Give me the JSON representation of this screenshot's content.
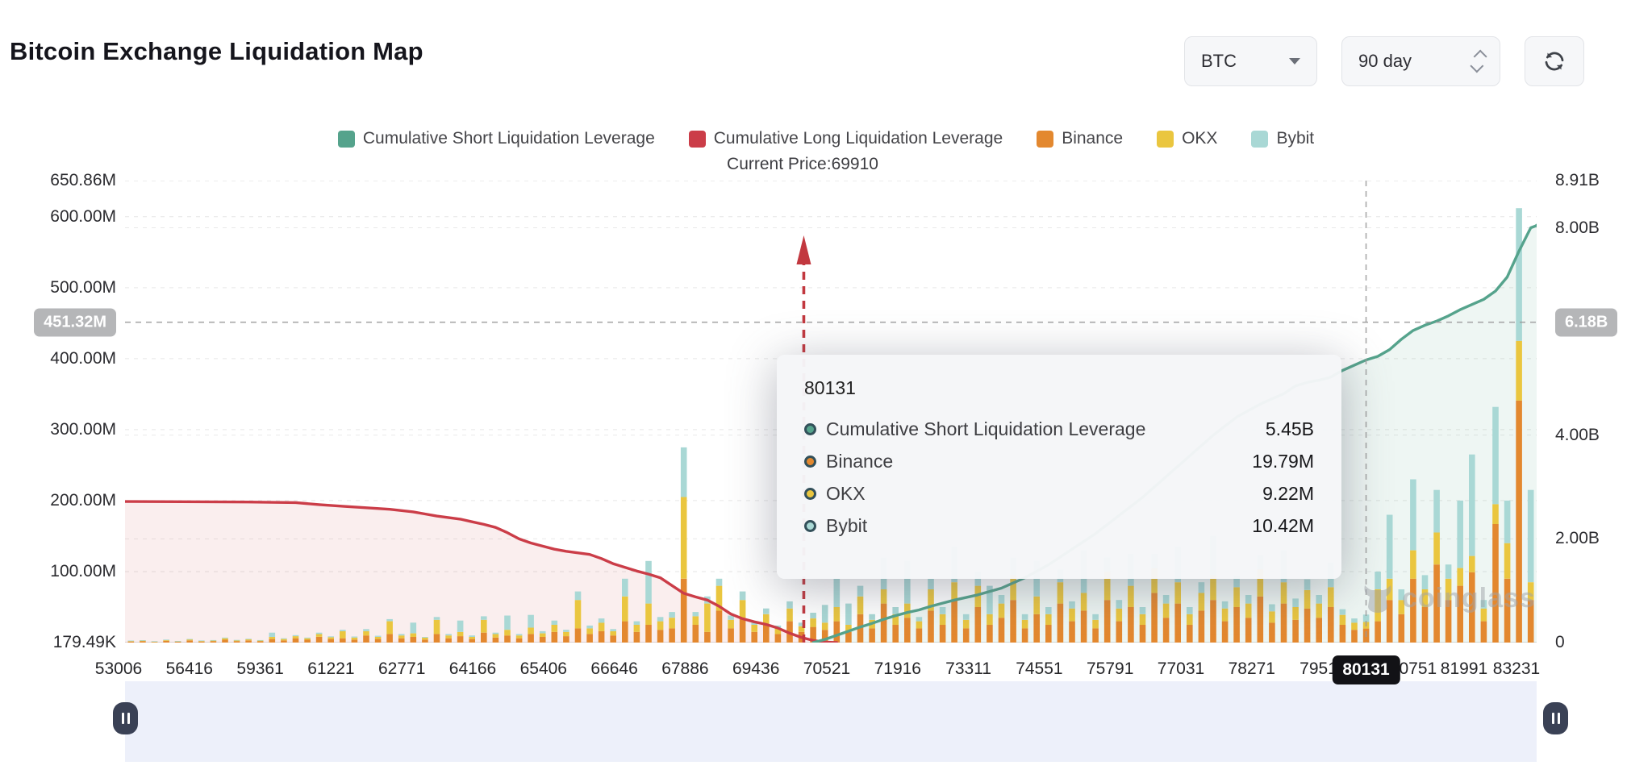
{
  "header": {
    "title": "Bitcoin Exchange Liquidation Map"
  },
  "controls": {
    "symbol": "BTC",
    "timeframe": "90 day"
  },
  "legend": {
    "items": [
      {
        "label": "Cumulative Short Liquidation Leverage",
        "color": "#55a38c"
      },
      {
        "label": "Cumulative Long Liquidation Leverage",
        "color": "#cb3d48"
      },
      {
        "label": "Binance",
        "color": "#e3882f"
      },
      {
        "label": "OKX",
        "color": "#eac63f"
      },
      {
        "label": "Bybit",
        "color": "#a9d8d5"
      }
    ]
  },
  "annotations": {
    "current_price_label": "Current Price:69910",
    "current_price_value": 69910
  },
  "tooltip": {
    "title": "80131",
    "rows": [
      {
        "label": "Cumulative Short Liquidation Leverage",
        "value": "5.45B",
        "color": "#55a38c"
      },
      {
        "label": "Binance",
        "value": "19.79M",
        "color": "#e3882f"
      },
      {
        "label": "OKX",
        "value": "9.22M",
        "color": "#eac63f"
      },
      {
        "label": "Bybit",
        "value": "10.42M",
        "color": "#a9d8d5"
      }
    ]
  },
  "watermark": {
    "text": "coinglass"
  },
  "chart_data": {
    "type": "bar",
    "combo": "stacked bars (left axis, millions USD) + two cumulative lines (right axis, billions USD)",
    "title": "Bitcoin Exchange Liquidation Map",
    "x_axis_labels": [
      "53006",
      "56416",
      "59361",
      "61221",
      "62771",
      "64166",
      "65406",
      "66646",
      "67886",
      "69436",
      "70521",
      "71916",
      "73311",
      "74551",
      "75791",
      "77031",
      "78271",
      "79511",
      "80131",
      "80751",
      "81991",
      "83231"
    ],
    "left_axis": {
      "unit": "M",
      "max": 650.86,
      "ticks": [
        {
          "label": "650.86M",
          "value": 650.86
        },
        {
          "label": "600.00M",
          "value": 600
        },
        {
          "label": "500.00M",
          "value": 500
        },
        {
          "label": "400.00M",
          "value": 400
        },
        {
          "label": "300.00M",
          "value": 300
        },
        {
          "label": "200.00M",
          "value": 200
        },
        {
          "label": "100.00M",
          "value": 100
        },
        {
          "label": "179.49K",
          "value": 0
        }
      ]
    },
    "right_axis": {
      "unit": "B",
      "max": 8.91,
      "ticks": [
        {
          "label": "8.91B",
          "value": 8.91
        },
        {
          "label": "8.00B",
          "value": 8
        },
        {
          "label": "4.00B",
          "value": 4
        },
        {
          "label": "2.00B",
          "value": 2
        },
        {
          "label": "0",
          "value": 0
        }
      ]
    },
    "crosshair": {
      "x_label": "80131",
      "hover_index": 105,
      "left_label": "451.32M",
      "left_value": 451.32,
      "right_label": "6.18B",
      "right_value": 6.18
    },
    "current_price": {
      "value": 69910,
      "bar_index": 57.2
    },
    "series": [
      {
        "name": "Cumulative Long Liquidation Leverage",
        "type": "line",
        "axis": "right",
        "color": "#cb3d48",
        "fill": "rgba(203,61,72,0.09)",
        "points": [
          [
            0,
            2.72
          ],
          [
            10,
            2.71
          ],
          [
            14,
            2.7
          ],
          [
            16,
            2.66
          ],
          [
            18,
            2.63
          ],
          [
            20,
            2.6
          ],
          [
            22,
            2.57
          ],
          [
            24,
            2.52
          ],
          [
            25,
            2.48
          ],
          [
            26,
            2.44
          ],
          [
            28,
            2.38
          ],
          [
            29,
            2.33
          ],
          [
            30,
            2.28
          ],
          [
            31,
            2.22
          ],
          [
            32,
            2.12
          ],
          [
            33,
            2.0
          ],
          [
            34,
            1.92
          ],
          [
            35,
            1.86
          ],
          [
            36,
            1.8
          ],
          [
            37,
            1.76
          ],
          [
            39,
            1.7
          ],
          [
            40,
            1.62
          ],
          [
            41,
            1.52
          ],
          [
            42,
            1.45
          ],
          [
            43,
            1.38
          ],
          [
            44,
            1.32
          ],
          [
            45,
            1.25
          ],
          [
            46,
            1.1
          ],
          [
            47,
            0.95
          ],
          [
            48,
            0.88
          ],
          [
            49,
            0.82
          ],
          [
            50,
            0.7
          ],
          [
            51,
            0.55
          ],
          [
            52,
            0.46
          ],
          [
            53,
            0.4
          ],
          [
            54,
            0.35
          ],
          [
            55,
            0.28
          ],
          [
            56,
            0.18
          ],
          [
            57,
            0.1
          ],
          [
            58,
            0.04
          ],
          [
            59,
            0.01
          ],
          [
            60,
            0
          ]
        ]
      },
      {
        "name": "Cumulative Short Liquidation Leverage",
        "type": "line",
        "axis": "right",
        "color": "#55a38c",
        "fill": "rgba(85,163,140,0.10)",
        "points": [
          [
            58,
            0
          ],
          [
            59,
            0.06
          ],
          [
            60,
            0.14
          ],
          [
            61,
            0.22
          ],
          [
            62,
            0.3
          ],
          [
            63,
            0.37
          ],
          [
            64,
            0.45
          ],
          [
            65,
            0.52
          ],
          [
            66,
            0.58
          ],
          [
            67,
            0.63
          ],
          [
            68,
            0.7
          ],
          [
            69,
            0.76
          ],
          [
            70,
            0.82
          ],
          [
            72,
            0.92
          ],
          [
            74,
            1.05
          ],
          [
            76,
            1.25
          ],
          [
            78,
            1.5
          ],
          [
            80,
            1.8
          ],
          [
            82,
            2.1
          ],
          [
            84,
            2.45
          ],
          [
            86,
            2.8
          ],
          [
            88,
            3.2
          ],
          [
            90,
            3.6
          ],
          [
            92,
            4.0
          ],
          [
            94,
            4.35
          ],
          [
            96,
            4.6
          ],
          [
            98,
            4.8
          ],
          [
            99,
            4.95
          ],
          [
            100,
            5.02
          ],
          [
            101,
            5.06
          ],
          [
            102,
            5.12
          ],
          [
            103,
            5.25
          ],
          [
            104,
            5.35
          ],
          [
            105,
            5.45
          ],
          [
            106,
            5.52
          ],
          [
            107,
            5.65
          ],
          [
            108,
            5.85
          ],
          [
            109,
            6.02
          ],
          [
            110,
            6.12
          ],
          [
            111,
            6.2
          ],
          [
            112,
            6.3
          ],
          [
            113,
            6.42
          ],
          [
            114,
            6.52
          ],
          [
            115,
            6.62
          ],
          [
            116,
            6.78
          ],
          [
            117,
            7.05
          ],
          [
            118,
            7.55
          ],
          [
            119,
            8.0
          ],
          [
            119.6,
            8.05
          ]
        ]
      },
      {
        "name": "Binance",
        "type": "bar",
        "axis": "left",
        "color": "#e3882f"
      },
      {
        "name": "OKX",
        "type": "bar",
        "axis": "left",
        "color": "#eac63f"
      },
      {
        "name": "Bybit",
        "type": "bar",
        "axis": "left",
        "color": "#a9d8d5"
      }
    ],
    "bars_stack_order": [
      "Binance",
      "OKX",
      "Bybit"
    ],
    "bars": [
      [
        1.5,
        1,
        0.3
      ],
      [
        2,
        1,
        0.4
      ],
      [
        1,
        0.6,
        0.3
      ],
      [
        2.5,
        1.2,
        0.5
      ],
      [
        1.2,
        0.8,
        0.3
      ],
      [
        3,
        1.5,
        0.6
      ],
      [
        1.5,
        1,
        0.4
      ],
      [
        2,
        1,
        0.5
      ],
      [
        4,
        2,
        1
      ],
      [
        2,
        1.2,
        0.5
      ],
      [
        3,
        1.5,
        0.8
      ],
      [
        2,
        1,
        0.5
      ],
      [
        5,
        3,
        6
      ],
      [
        3,
        2,
        1
      ],
      [
        6,
        3,
        1.5
      ],
      [
        4,
        2,
        1
      ],
      [
        8,
        4,
        2
      ],
      [
        5,
        2.5,
        1.2
      ],
      [
        6,
        10,
        2
      ],
      [
        4,
        3,
        1.5
      ],
      [
        10,
        6,
        3
      ],
      [
        5,
        3,
        1.5
      ],
      [
        12,
        18,
        3
      ],
      [
        6,
        4,
        2
      ],
      [
        8,
        5,
        15
      ],
      [
        4,
        3,
        1
      ],
      [
        12,
        20,
        4
      ],
      [
        6,
        4,
        2
      ],
      [
        9,
        6,
        16
      ],
      [
        5,
        3,
        2
      ],
      [
        14,
        18,
        5
      ],
      [
        7,
        5,
        2
      ],
      [
        10,
        8,
        20
      ],
      [
        6,
        4,
        2
      ],
      [
        12,
        9,
        18
      ],
      [
        8,
        5,
        3
      ],
      [
        15,
        10,
        6
      ],
      [
        9,
        6,
        3
      ],
      [
        20,
        40,
        12
      ],
      [
        12,
        8,
        4
      ],
      [
        16,
        12,
        6
      ],
      [
        10,
        6,
        3
      ],
      [
        30,
        35,
        25
      ],
      [
        15,
        10,
        5
      ],
      [
        25,
        30,
        60
      ],
      [
        18,
        12,
        6
      ],
      [
        20,
        15,
        8
      ],
      [
        90,
        115,
        70
      ],
      [
        25,
        12,
        6
      ],
      [
        15,
        40,
        10
      ],
      [
        45,
        35,
        10
      ],
      [
        20,
        12,
        6
      ],
      [
        35,
        25,
        12
      ],
      [
        15,
        10,
        5
      ],
      [
        25,
        15,
        8
      ],
      [
        12,
        8,
        4
      ],
      [
        30,
        18,
        10
      ],
      [
        15,
        8,
        5
      ],
      [
        22,
        12,
        8
      ],
      [
        18,
        10,
        25
      ],
      [
        30,
        20,
        40
      ],
      [
        15,
        10,
        30
      ],
      [
        40,
        25,
        15
      ],
      [
        20,
        12,
        8
      ],
      [
        55,
        20,
        45
      ],
      [
        25,
        15,
        10
      ],
      [
        35,
        20,
        60
      ],
      [
        20,
        10,
        6
      ],
      [
        45,
        30,
        15
      ],
      [
        25,
        15,
        10
      ],
      [
        60,
        25,
        50
      ],
      [
        20,
        12,
        8
      ],
      [
        50,
        30,
        20
      ],
      [
        25,
        15,
        40
      ],
      [
        35,
        20,
        12
      ],
      [
        60,
        35,
        25
      ],
      [
        20,
        12,
        8
      ],
      [
        40,
        25,
        50
      ],
      [
        25,
        15,
        10
      ],
      [
        55,
        30,
        18
      ],
      [
        30,
        18,
        10
      ],
      [
        45,
        25,
        60
      ],
      [
        20,
        12,
        8
      ],
      [
        60,
        40,
        20
      ],
      [
        30,
        18,
        12
      ],
      [
        50,
        30,
        45
      ],
      [
        25,
        15,
        10
      ],
      [
        70,
        35,
        20
      ],
      [
        35,
        20,
        12
      ],
      [
        55,
        30,
        50
      ],
      [
        25,
        15,
        10
      ],
      [
        45,
        25,
        15
      ],
      [
        60,
        35,
        55
      ],
      [
        30,
        18,
        10
      ],
      [
        50,
        28,
        16
      ],
      [
        35,
        20,
        12
      ],
      [
        65,
        38,
        20
      ],
      [
        28,
        16,
        10
      ],
      [
        55,
        30,
        45
      ],
      [
        32,
        18,
        12
      ],
      [
        48,
        26,
        15
      ],
      [
        35,
        20,
        12
      ],
      [
        50,
        28,
        35
      ],
      [
        25,
        14,
        8
      ],
      [
        18,
        10,
        6
      ],
      [
        19.79,
        9.22,
        10.42
      ],
      [
        30,
        45,
        25
      ],
      [
        60,
        30,
        90
      ],
      [
        40,
        20,
        15
      ],
      [
        90,
        40,
        100
      ],
      [
        50,
        25,
        20
      ],
      [
        110,
        45,
        60
      ],
      [
        60,
        30,
        20
      ],
      [
        80,
        25,
        95
      ],
      [
        99,
        23,
        143
      ],
      [
        30,
        18,
        12
      ],
      [
        167,
        28,
        137
      ],
      [
        90,
        50,
        60
      ],
      [
        341,
        84,
        187
      ],
      [
        60,
        25,
        130
      ]
    ]
  }
}
